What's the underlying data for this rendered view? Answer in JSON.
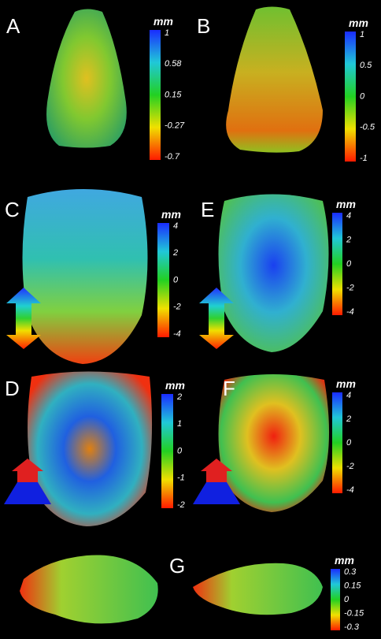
{
  "panels": [
    {
      "label": "A",
      "unit": "mm",
      "ticks": [
        "1",
        "0.58",
        "0.15",
        "-0.27",
        "-0.7"
      ]
    },
    {
      "label": "B",
      "unit": "mm",
      "ticks": [
        "1",
        "0.5",
        "0",
        "-0.5",
        "-1"
      ]
    },
    {
      "label": "C",
      "unit": "mm",
      "ticks": [
        "4",
        "2",
        "0",
        "-2",
        "-4"
      ]
    },
    {
      "label": "E",
      "unit": "mm",
      "ticks": [
        "4",
        "2",
        "0",
        "-2",
        "-4"
      ]
    },
    {
      "label": "D",
      "unit": "mm",
      "ticks": [
        "2",
        "1",
        "0",
        "-1",
        "-2"
      ]
    },
    {
      "label": "F",
      "unit": "mm",
      "ticks": [
        "4",
        "2",
        "0",
        "-2",
        "-4"
      ]
    },
    {
      "label": "G",
      "unit": "mm",
      "ticks": [
        "0.3",
        "0.15",
        "0",
        "-0.15",
        "-0.3"
      ]
    }
  ]
}
